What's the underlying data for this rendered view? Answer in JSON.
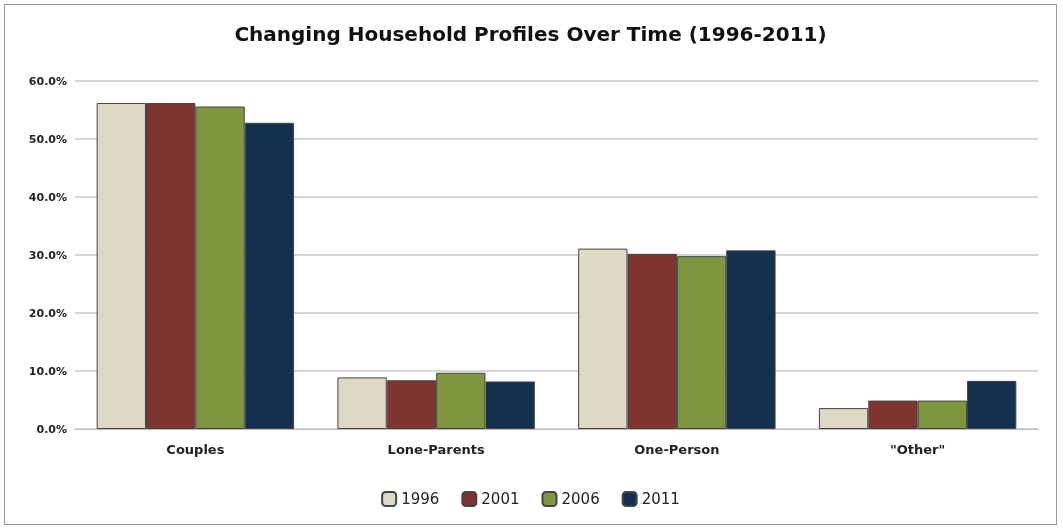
{
  "chart_data": {
    "type": "bar",
    "title": "Changing Household Profiles Over Time (1996-2011)",
    "categories": [
      "Couples",
      "Lone-Parents",
      "One-Person",
      "\"Other\""
    ],
    "series": [
      {
        "name": "1996",
        "color": "#ddd9c4",
        "values": [
          56.2,
          8.9,
          31.1,
          3.6
        ]
      },
      {
        "name": "2001",
        "color": "#7f3430",
        "values": [
          56.2,
          8.4,
          30.2,
          4.9
        ]
      },
      {
        "name": "2006",
        "color": "#7f9640",
        "values": [
          55.6,
          9.7,
          29.8,
          4.9
        ]
      },
      {
        "name": "2011",
        "color": "#13304f",
        "values": [
          52.8,
          8.2,
          30.8,
          8.3
        ]
      }
    ],
    "ylim": [
      0,
      60
    ],
    "yticks": [
      {
        "value": 0,
        "label": "0.0%"
      },
      {
        "value": 10,
        "label": "10.0%"
      },
      {
        "value": 20,
        "label": "20.0%"
      },
      {
        "value": 30,
        "label": "30.0%"
      },
      {
        "value": 40,
        "label": "40.0%"
      },
      {
        "value": 50,
        "label": "50.0%"
      },
      {
        "value": 60,
        "label": "60.0%"
      }
    ],
    "grid": "y",
    "legend": "bottom"
  }
}
